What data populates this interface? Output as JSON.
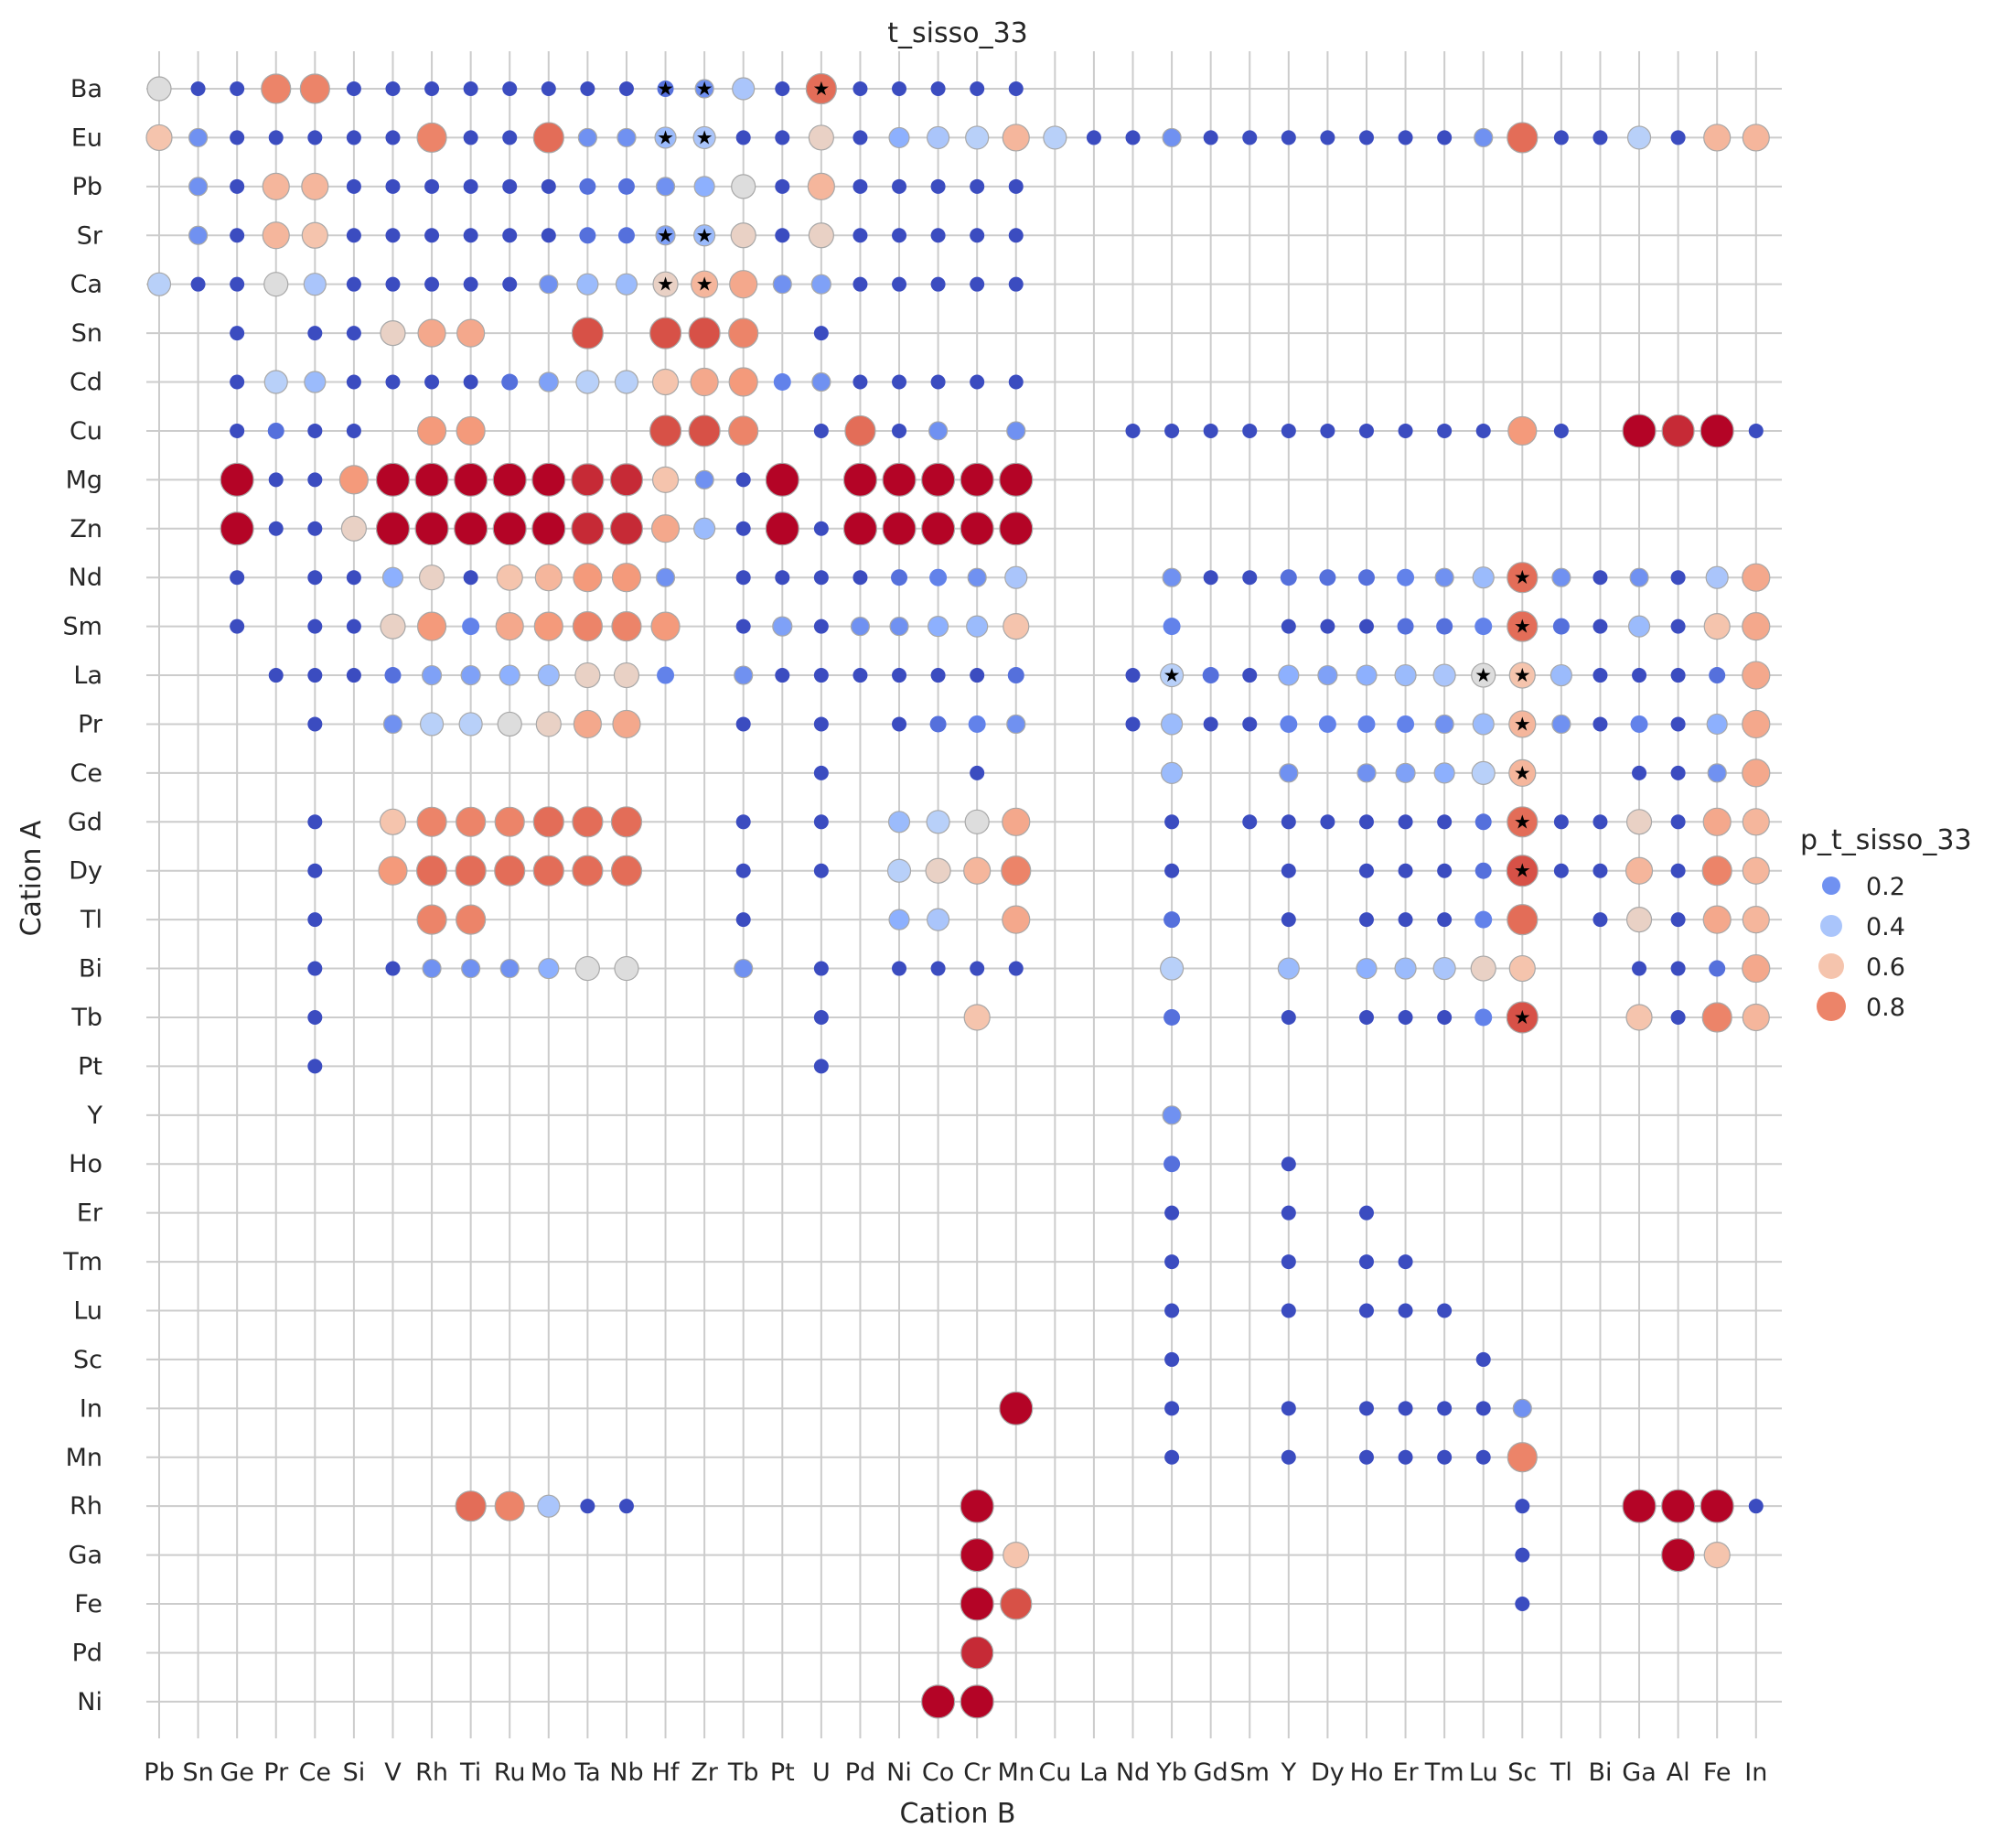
{
  "chart_data": {
    "type": "scatter",
    "title": "t_sisso_33",
    "xlabel": "Cation B",
    "ylabel": "Cation A",
    "x_categories": [
      "Pb",
      "Sn",
      "Ge",
      "Pr",
      "Ce",
      "Si",
      "V",
      "Rh",
      "Ti",
      "Ru",
      "Mo",
      "Ta",
      "Nb",
      "Hf",
      "Zr",
      "Tb",
      "Pt",
      "U",
      "Pd",
      "Ni",
      "Co",
      "Cr",
      "Mn",
      "Cu",
      "La",
      "Nd",
      "Yb",
      "Gd",
      "Sm",
      "Y",
      "Dy",
      "Ho",
      "Er",
      "Tm",
      "Lu",
      "Sc",
      "Tl",
      "Bi",
      "Ga",
      "Al",
      "Fe",
      "In"
    ],
    "y_categories": [
      "Ba",
      "Eu",
      "Pb",
      "Sr",
      "Ca",
      "Sn",
      "Cd",
      "Cu",
      "Mg",
      "Zn",
      "Nd",
      "Sm",
      "La",
      "Pr",
      "Ce",
      "Gd",
      "Dy",
      "Tl",
      "Bi",
      "Tb",
      "Pt",
      "Y",
      "Ho",
      "Er",
      "Tm",
      "Lu",
      "Sc",
      "In",
      "Mn",
      "Rh",
      "Ga",
      "Fe",
      "Pd",
      "Ni"
    ],
    "grid": true,
    "colormap": "coolwarm",
    "legend": {
      "title": "p_t_sisso_33",
      "placement": "right",
      "entries": [
        {
          "label": "0.2",
          "value": 0.2
        },
        {
          "label": "0.4",
          "value": 0.4
        },
        {
          "label": "0.6",
          "value": 0.6
        },
        {
          "label": "0.8",
          "value": 0.8
        }
      ]
    },
    "rows": {
      "Ba": "Pb:0.5,Sn:0,Ge:0,Pr:0.8,Ce:0.8,Si:0,V:0,Rh:0,Ti:0,Ru:0,Mo:0,Ta:0,Nb:0,Hf:0.1*,Zr:0.2*,Tb:0.4,Pt:0,U:0.85*,Pd:0,Ni:0,Co:0,Cr:0,Mn:0",
      "Eu": "Pb:0.6,Sn:0.2,Ge:0,Pr:0,Ce:0,Si:0,V:0,Rh:0.8,Ti:0,Ru:0,Mo:0.85,Ta:0.2,Nb:0.2,Hf:0.35*,Zr:0.4*,Tb:0,Pt:0,U:0.55,Pd:0,Ni:0.3,Co:0.4,Cr:0.45,Mn:0.65,Cu:0.45,La:0,Nd:0,Yb:0.2,Gd:0,Sm:0,Y:0,Dy:0,Ho:0,Er:0,Tm:0,Lu:0.2,Sc:0.85,Tl:0,Bi:0,Ga:0.45,Al:0,Fe:0.65,In:0.65",
      "Pb": "Sn:0.2,Ge:0,Pr:0.65,Ce:0.65,Si:0,V:0,Rh:0,Ti:0,Ru:0,Mo:0,Ta:0.1,Nb:0.1,Hf:0.2,Zr:0.3,Tb:0.5,Pt:0,U:0.65,Pd:0,Ni:0,Co:0,Cr:0,Mn:0",
      "Sr": "Sn:0.2,Ge:0,Pr:0.65,Ce:0.6,Si:0,V:0,Rh:0,Ti:0,Ru:0,Mo:0,Ta:0.1,Nb:0.1,Hf:0.25*,Zr:0.35*,Tb:0.55,Pt:0,U:0.55,Pd:0,Ni:0,Co:0,Cr:0,Mn:0",
      "Ca": "Pb:0.45,Sn:0,Ge:0,Pr:0.5,Ce:0.4,Si:0,V:0,Rh:0,Ti:0,Ru:0,Mo:0.2,Ta:0.35,Nb:0.35,Hf:0.55*,Zr:0.65*,Tb:0.7,Pt:0.2,U:0.25,Pd:0,Ni:0,Co:0,Cr:0,Mn:0",
      "Sn": "Ge:0,Ce:0,Si:0,V:0.55,Rh:0.7,Ti:0.7,Ta:0.9,Hf:0.9,Zr:0.9,Tb:0.8,U:0",
      "Cd": "Ge:0,Pr:0.45,Ce:0.35,Si:0,V:0,Rh:0,Ti:0,Ru:0.1,Mo:0.25,Ta:0.45,Nb:0.45,Hf:0.6,Zr:0.7,Tb:0.75,Pt:0.15,U:0.2,Pd:0,Ni:0,Co:0,Cr:0,Mn:0",
      "Cu": "Ge:0,Pr:0.1,Ce:0,Si:0,Rh:0.75,Ti:0.75,Hf:0.9,Zr:0.9,Tb:0.8,U:0,Pd:0.85,Ni:0,Co:0.2,Mn:0.2,Nd:0,Yb:0,Gd:0,Sm:0,Y:0,Dy:0,Ho:0,Er:0,Tm:0,Lu:0,Sc:0.75,Tl:0,Ga:1,Al:0.95,Fe:1,In:0",
      "Mg": "Ge:1,Pr:0,Ce:0,Si:0.75,V:1,Rh:1,Ti:1,Ru:1,Mo:1,Ta:0.95,Nb:0.95,Hf:0.6,Zr:0.2,Tb:0,Pt:1,Pd:1,Ni:1,Co:1,Cr:1,Mn:1",
      "Zn": "Ge:1,Pr:0,Ce:0,Si:0.55,V:1,Rh:1,Ti:1,Ru:1,Mo:1,Ta:0.95,Nb:0.95,Hf:0.7,Zr:0.35,Tb:0,Pt:1,U:0,Pd:1,Ni:1,Co:1,Cr:1,Mn:1",
      "Nd": "Ge:0,Ce:0,Si:0,V:0.3,Rh:0.55,Ti:0,Ru:0.6,Mo:0.65,Ta:0.75,Nb:0.75,Hf:0.2,Tb:0,Pt:0,U:0,Pd:0,Ni:0.1,Co:0.15,Cr:0.2,Mn:0.4,Yb:0.2,Gd:0,Sm:0,Y:0.1,Dy:0.1,Ho:0.1,Er:0.15,Tm:0.2,Lu:0.35,Sc:0.85*,Tl:0.2,Bi:0,Ga:0.2,Al:0,Fe:0.4,In:0.7",
      "Sm": "Ge:0,Ce:0,Si:0,V:0.55,Rh:0.75,Ti:0.15,Ru:0.7,Mo:0.75,Ta:0.8,Nb:0.8,Hf:0.75,Tb:0,Pt:0.25,U:0,Pd:0.2,Ni:0.2,Co:0.3,Cr:0.35,Mn:0.6,Yb:0.15,Y:0,Dy:0,Ho:0,Er:0.1,Tm:0.1,Lu:0.15,Sc:0.85*,Tl:0.1,Bi:0,Ga:0.35,Al:0,Fe:0.6,In:0.7",
      "La": "Pr:0,Ce:0,Si:0,V:0.1,Rh:0.25,Ti:0.25,Ru:0.3,Mo:0.35,Ta:0.55,Nb:0.55,Hf:0.15,Tb:0.2,Pt:0,U:0,Pd:0,Ni:0,Co:0,Cr:0,Mn:0.1,Nd:0,Yb:0.45*,Gd:0.1,Sm:0,Y:0.3,Dy:0.25,Ho:0.3,Er:0.35,Tm:0.4,Lu:0.5*,Sc:0.6*,Tl:0.35,Bi:0,Ga:0,Al:0,Fe:0.1,In:0.7",
      "Pr": "Ce:0,V:0.2,Rh:0.45,Ti:0.45,Ru:0.5,Mo:0.55,Ta:0.7,Nb:0.7,Tb:0,U:0,Ni:0,Co:0.1,Cr:0.15,Mn:0.2,Nd:0,Yb:0.35,Gd:0,Sm:0,Y:0.15,Dy:0.15,Ho:0.15,Er:0.15,Tm:0.2,Lu:0.35,Sc:0.65*,Tl:0.2,Bi:0,Ga:0.15,Al:0,Fe:0.3,In:0.7",
      "Ce": "U:0,Cr:0,Yb:0.35,Y:0.2,Ho:0.2,Er:0.25,Tm:0.3,Lu:0.45,Sc:0.65*,Ga:0,Al:0,Fe:0.2,In:0.7",
      "Gd": "Ce:0,V:0.6,Rh:0.8,Ti:0.8,Ru:0.8,Mo:0.85,Ta:0.85,Nb:0.85,Tb:0,U:0,Ni:0.35,Co:0.45,Cr:0.5,Mn:0.7,Yb:0,Sm:0,Y:0,Dy:0,Ho:0,Er:0,Tm:0,Lu:0.1,Sc:0.85*,Tl:0,Bi:0,Ga:0.55,Al:0,Fe:0.7,In:0.65",
      "Dy": "Ce:0,V:0.75,Rh:0.85,Ti:0.85,Ru:0.85,Mo:0.85,Ta:0.85,Nb:0.85,Tb:0,U:0,Ni:0.45,Co:0.55,Cr:0.65,Mn:0.8,Yb:0,Y:0,Ho:0,Er:0,Tm:0,Lu:0.1,Sc:0.9*,Tl:0,Bi:0,Ga:0.65,Al:0,Fe:0.8,In:0.65",
      "Tl": "Ce:0,Rh:0.8,Ti:0.8,Tb:0,Ni:0.3,Co:0.4,Mn:0.7,Yb:0.1,Y:0,Ho:0,Er:0,Tm:0,Lu:0.15,Sc:0.85,Bi:0,Ga:0.55,Al:0,Fe:0.7,In:0.65",
      "Bi": "Ce:0,V:0,Rh:0.2,Ti:0.2,Ru:0.2,Mo:0.3,Ta:0.5,Nb:0.5,Tb:0.2,U:0,Ni:0,Co:0,Cr:0,Mn:0,Yb:0.45,Y:0.35,Ho:0.3,Er:0.35,Tm:0.4,Lu:0.55,Sc:0.6,Ga:0,Al:0,Fe:0.1,In:0.7",
      "Tb": "Ce:0,U:0,Cr:0.6,Yb:0.1,Y:0,Ho:0,Er:0,Tm:0,Lu:0.15,Sc:0.9*,Ga:0.6,Al:0,Fe:0.8,In:0.65",
      "Pt": "Ce:0,U:0",
      "Y": "Yb:0.2",
      "Ho": "Yb:0.1,Y:0",
      "Er": "Yb:0,Y:0,Ho:0",
      "Tm": "Yb:0,Y:0,Ho:0,Er:0",
      "Lu": "Yb:0,Y:0,Ho:0,Er:0,Tm:0",
      "Sc": "Yb:0,Lu:0",
      "In": "Mn:1,Yb:0,Y:0,Ho:0,Er:0,Tm:0,Lu:0,Sc:0.2",
      "Mn": "Yb:0,Y:0,Ho:0,Er:0,Tm:0,Lu:0,Sc:0.8",
      "Rh": "Ti:0.85,Ru:0.8,Mo:0.4,Ta:0,Nb:0,Cr:1,Sc:0,Ga:1,Al:1,Fe:1,In:0",
      "Ga": "Cr:1,Mn:0.6,Sc:0,Al:1,Fe:0.6",
      "Fe": "Cr:1,Mn:0.9,Sc:0",
      "Pd": "Cr:0.95",
      "Ni": "Co:1,Cr:1"
    }
  }
}
